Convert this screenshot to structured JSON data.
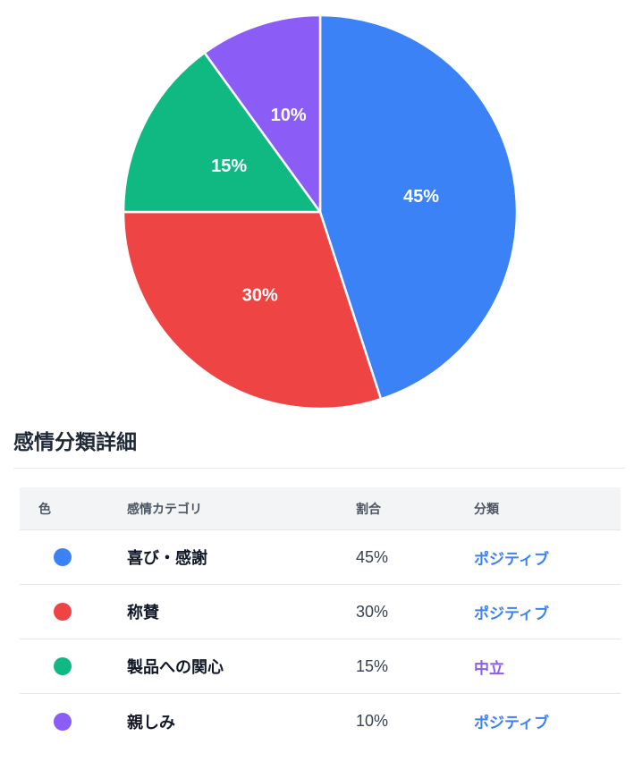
{
  "chart_data": {
    "type": "pie",
    "title": "",
    "labels": [
      "喜び・感謝",
      "称賛",
      "製品への関心",
      "親しみ"
    ],
    "values": [
      45,
      30,
      15,
      10
    ],
    "value_labels": [
      "45%",
      "30%",
      "15%",
      "10%"
    ],
    "colors": [
      "#3b82f6",
      "#ef4444",
      "#10b981",
      "#8b5cf6"
    ],
    "start_angle_deg": 0,
    "direction": "clockwise",
    "slice_border_color": "#ffffff",
    "label_color": "#ffffff",
    "legend_position": "none"
  },
  "section": {
    "title": "感情分類詳細"
  },
  "table": {
    "headers": [
      "色",
      "感情カテゴリ",
      "割合",
      "分類"
    ],
    "rows": [
      {
        "color": "#3b82f6",
        "category": "喜び・感謝",
        "percent": "45%",
        "classification": "ポジティブ",
        "classification_color": "#3b82f6"
      },
      {
        "color": "#ef4444",
        "category": "称賛",
        "percent": "30%",
        "classification": "ポジティブ",
        "classification_color": "#3b82f6"
      },
      {
        "color": "#10b981",
        "category": "製品への関心",
        "percent": "15%",
        "classification": "中立",
        "classification_color": "#8b5cf6"
      },
      {
        "color": "#8b5cf6",
        "category": "親しみ",
        "percent": "10%",
        "classification": "ポジティブ",
        "classification_color": "#3b82f6"
      }
    ]
  }
}
